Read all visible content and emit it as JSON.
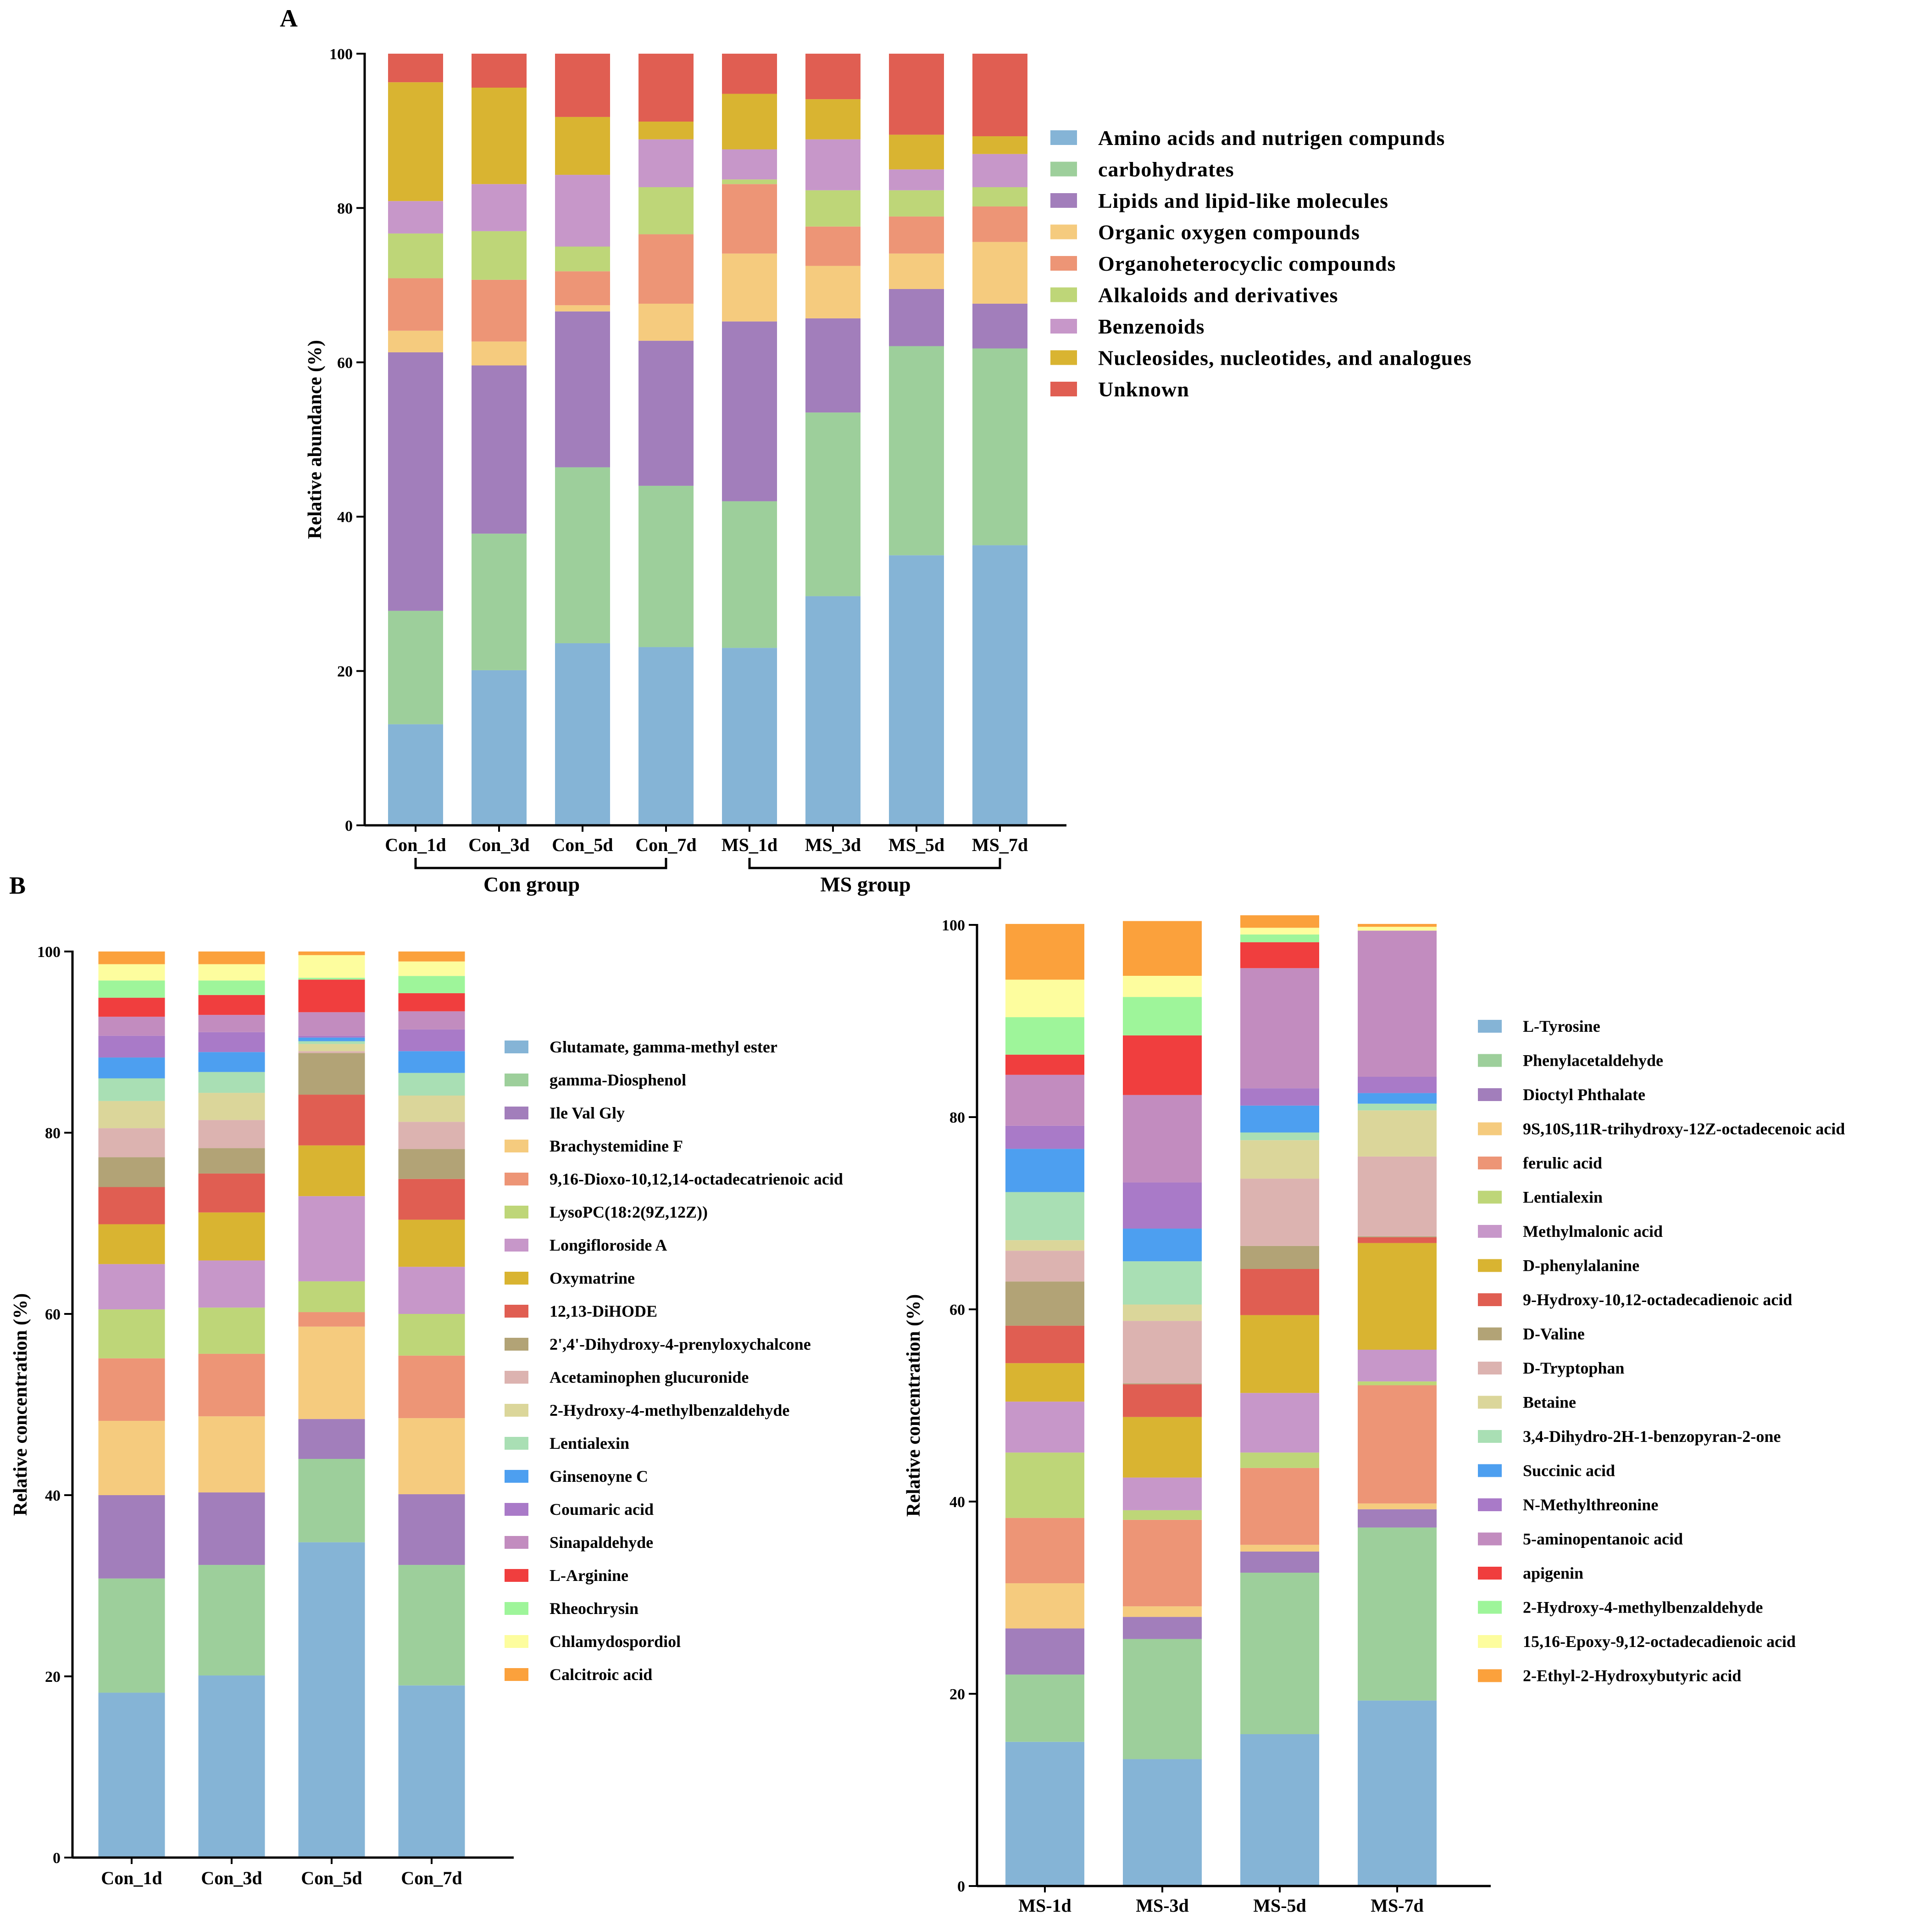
{
  "chart_data": [
    {
      "panel": "A",
      "type": "bar",
      "stacked": true,
      "ylabel": "Relative abundance (%)",
      "ylim": [
        0,
        100
      ],
      "yticks": [
        0,
        20,
        40,
        60,
        80,
        100
      ],
      "categories": [
        "Con_1d",
        "Con_3d",
        "Con_5d",
        "Con_7d",
        "MS_1d",
        "MS_3d",
        "MS_5d",
        "MS_7d"
      ],
      "groups": [
        {
          "label": "Con group",
          "from": 0,
          "to": 3
        },
        {
          "label": "MS group",
          "from": 4,
          "to": 7
        }
      ],
      "legend_position": "right",
      "series": [
        {
          "name": "Amino acids and nutrigen compunds",
          "color": "#85b4d6",
          "values": [
            13.1,
            20.1,
            23.6,
            23.1,
            23.0,
            29.7,
            35.0,
            36.3
          ]
        },
        {
          "name": "carbohydrates",
          "color": "#9dcf9b",
          "values": [
            14.7,
            17.7,
            22.8,
            20.9,
            19.0,
            23.8,
            27.1,
            25.5
          ]
        },
        {
          "name": "Lipids and lipid-like molecules",
          "color": "#a27ebb",
          "values": [
            33.5,
            21.8,
            20.2,
            18.8,
            23.3,
            12.2,
            7.4,
            5.8
          ]
        },
        {
          "name": "Organic oxygen compounds",
          "color": "#f5cb7e",
          "values": [
            2.8,
            3.1,
            0.8,
            4.8,
            8.8,
            6.8,
            4.6,
            8.0
          ]
        },
        {
          "name": "Organoheterocyclic compounds",
          "color": "#ed9576",
          "values": [
            6.8,
            8.0,
            4.4,
            9.0,
            9.0,
            5.1,
            4.8,
            4.6
          ]
        },
        {
          "name": "Alkaloids and derivatives",
          "color": "#bed678",
          "values": [
            5.8,
            6.3,
            3.2,
            6.1,
            0.6,
            4.7,
            3.4,
            2.5
          ]
        },
        {
          "name": "Benzenoids",
          "color": "#c797c9",
          "values": [
            4.2,
            6.1,
            9.3,
            6.2,
            3.9,
            6.6,
            2.7,
            4.3
          ]
        },
        {
          "name": "Nucleosides, nucleotides, and analogues",
          "color": "#d9b431",
          "values": [
            15.4,
            12.5,
            7.5,
            2.3,
            7.2,
            5.2,
            4.5,
            2.3
          ]
        },
        {
          "name": "Unknown",
          "color": "#e05e52",
          "values": [
            3.7,
            4.4,
            8.2,
            8.8,
            5.2,
            5.9,
            10.5,
            10.7
          ]
        }
      ]
    },
    {
      "panel": "B",
      "type": "bar",
      "stacked": true,
      "ylabel": "Relative concentration (%)",
      "ylim": [
        0,
        100
      ],
      "yticks": [
        0,
        20,
        40,
        60,
        80,
        100
      ],
      "categories": [
        "Con_1d",
        "Con_3d",
        "Con_5d",
        "Con_7d"
      ],
      "legend_position": "right",
      "series": [
        {
          "name": "Glutamate, gamma-methyl ester",
          "color": "#85b4d6",
          "values": [
            18.2,
            20.1,
            34.8,
            19.0
          ]
        },
        {
          "name": "gamma-Diosphenol",
          "color": "#9dcf9b",
          "values": [
            12.6,
            12.2,
            9.2,
            13.3
          ]
        },
        {
          "name": "Ile Val Gly",
          "color": "#a27ebb",
          "values": [
            9.2,
            8.0,
            4.4,
            7.8
          ]
        },
        {
          "name": "Brachystemidine F",
          "color": "#f5cb7e",
          "values": [
            8.2,
            8.4,
            10.2,
            8.4
          ]
        },
        {
          "name": "9,16-Dioxo-10,12,14-octadecatrienoic acid",
          "color": "#ed9576",
          "values": [
            6.9,
            6.9,
            1.6,
            6.9
          ]
        },
        {
          "name": "LysoPC(18:2(9Z,12Z))",
          "color": "#bed678",
          "values": [
            5.4,
            5.1,
            3.4,
            4.6
          ]
        },
        {
          "name": "Longifloroside A",
          "color": "#c797c9",
          "values": [
            5.0,
            5.2,
            9.4,
            5.2
          ]
        },
        {
          "name": "Oxymatrine",
          "color": "#d9b431",
          "values": [
            4.4,
            5.3,
            5.6,
            5.2
          ]
        },
        {
          "name": "12,13-DiHODE",
          "color": "#e05e52",
          "values": [
            4.1,
            4.3,
            5.6,
            4.5
          ]
        },
        {
          "name": "2',4'-Dihydroxy-4-prenyloxychalcone",
          "color": "#b2a376",
          "values": [
            3.3,
            2.8,
            4.6,
            3.3
          ]
        },
        {
          "name": "Acetaminophen glucuronide",
          "color": "#dcb3b0",
          "values": [
            3.2,
            3.1,
            0.2,
            3.0
          ]
        },
        {
          "name": "2-Hydroxy-4-methylbenzaldehyde",
          "color": "#dbd69a",
          "values": [
            3.0,
            3.0,
            0.8,
            2.9
          ]
        },
        {
          "name": "Lentialexin",
          "color": "#a9dfb4",
          "values": [
            2.5,
            2.3,
            0.3,
            2.5
          ]
        },
        {
          "name": "Ginsenoyne C",
          "color": "#4d9ff0",
          "values": [
            2.3,
            2.2,
            0.4,
            2.4
          ]
        },
        {
          "name": "Coumaric acid",
          "color": "#a97ac8",
          "values": [
            2.4,
            2.2,
            0.2,
            2.4
          ]
        },
        {
          "name": "Sinapaldehyde",
          "color": "#c28cbf",
          "values": [
            2.1,
            1.9,
            2.6,
            2.0
          ]
        },
        {
          "name": "L-Arginine",
          "color": "#f03e3e",
          "values": [
            2.1,
            2.2,
            3.6,
            2.0
          ]
        },
        {
          "name": "Rheochrysin",
          "color": "#9ef59a",
          "values": [
            1.9,
            1.6,
            0.2,
            1.9
          ]
        },
        {
          "name": "Chlamydospordiol",
          "color": "#fdfd9e",
          "values": [
            1.8,
            1.8,
            2.5,
            1.6
          ]
        },
        {
          "name": "Calcitroic acid",
          "color": "#fba13c",
          "values": [
            1.4,
            1.4,
            0.4,
            1.1
          ]
        }
      ]
    },
    {
      "panel": "B-right",
      "type": "bar",
      "stacked": true,
      "ylabel": "Relative concentration (%)",
      "ylim": [
        0,
        100
      ],
      "yticks": [
        0,
        20,
        40,
        60,
        80,
        100
      ],
      "categories": [
        "MS-1d",
        "MS-3d",
        "MS-5d",
        "MS-7d"
      ],
      "legend_position": "right",
      "series": [
        {
          "name": "L-Tyrosine",
          "color": "#85b4d6",
          "values": [
            15.0,
            13.2,
            15.8,
            19.3
          ]
        },
        {
          "name": "Phenylacetaldehyde",
          "color": "#9dcf9b",
          "values": [
            7.0,
            12.5,
            16.8,
            18.0
          ]
        },
        {
          "name": "Dioctyl Phthalate",
          "color": "#a27ebb",
          "values": [
            4.8,
            2.3,
            2.2,
            1.9
          ]
        },
        {
          "name": "9S,10S,11R-trihydroxy-12Z-octadecenoic acid",
          "color": "#f5cb7e",
          "values": [
            4.7,
            1.1,
            0.7,
            0.6
          ]
        },
        {
          "name": "ferulic acid",
          "color": "#ed9576",
          "values": [
            6.8,
            9.0,
            8.0,
            12.3
          ]
        },
        {
          "name": "Lentialexin",
          "color": "#bed678",
          "values": [
            6.8,
            1.0,
            1.6,
            0.4
          ]
        },
        {
          "name": "Methylmalonic acid",
          "color": "#c797c9",
          "values": [
            5.3,
            3.4,
            6.2,
            3.3
          ]
        },
        {
          "name": "D-phenylalanine",
          "color": "#d9b431",
          "values": [
            4.0,
            6.3,
            8.1,
            11.1
          ]
        },
        {
          "name": "9-Hydroxy-10,12-octadecadienoic acid",
          "color": "#e05e52",
          "values": [
            3.9,
            3.4,
            4.8,
            0.6
          ]
        },
        {
          "name": "D-Valine",
          "color": "#b2a376",
          "values": [
            4.6,
            0.1,
            2.4,
            0.1
          ]
        },
        {
          "name": "D-Tryptophan",
          "color": "#dcb3b0",
          "values": [
            3.2,
            6.5,
            7.0,
            8.3
          ]
        },
        {
          "name": "Betaine",
          "color": "#dbd69a",
          "values": [
            1.1,
            1.7,
            4.0,
            4.8
          ]
        },
        {
          "name": "3,4-Dihydro-2H-1-benzopyran-2-one",
          "color": "#a9dfb4",
          "values": [
            5.0,
            4.5,
            0.8,
            0.7
          ]
        },
        {
          "name": "Succinic acid",
          "color": "#4d9ff0",
          "values": [
            4.5,
            3.4,
            2.8,
            1.1
          ]
        },
        {
          "name": "N-Methylthreonine",
          "color": "#a97ac8",
          "values": [
            2.4,
            4.8,
            1.8,
            1.7
          ]
        },
        {
          "name": "5-aminopentanoic acid",
          "color": "#c28cbf",
          "values": [
            5.3,
            9.1,
            12.5,
            15.2
          ]
        },
        {
          "name": "apigenin",
          "color": "#f03e3e",
          "values": [
            2.1,
            6.2,
            2.7,
            0.0
          ]
        },
        {
          "name": "2-Hydroxy-4-methylbenzaldehyde",
          "color": "#9ef59a",
          "values": [
            3.9,
            4.0,
            0.8,
            0.0
          ]
        },
        {
          "name": "15,16-Epoxy-9,12-octadecadienoic acid",
          "color": "#fdfd9e",
          "values": [
            3.9,
            2.2,
            0.7,
            0.4
          ]
        },
        {
          "name": "2-Ethyl-2-Hydroxybutyric acid",
          "color": "#fba13c",
          "values": [
            5.8,
            5.7,
            1.3,
            0.3
          ]
        }
      ]
    }
  ],
  "labels": {
    "panelA": "A",
    "panelB": "B"
  }
}
